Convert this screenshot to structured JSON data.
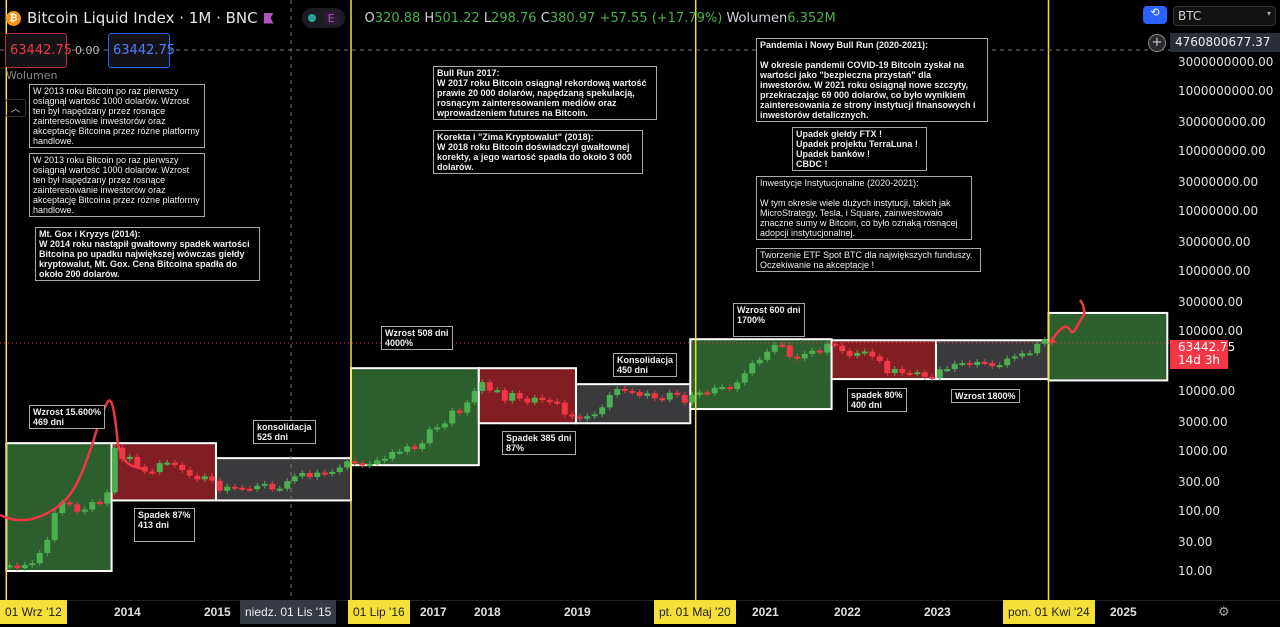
{
  "header": {
    "title": "Bitcoin Liquid Index · 1M · BNC",
    "badge_e": "E",
    "ohlc": {
      "o_label": "O",
      "o": "320.88",
      "h_label": "H",
      "h": "501.22",
      "l_label": "L",
      "l": "298.76",
      "c_label": "C",
      "c": "380.97",
      "change": "+57.55 (+17.79%)",
      "vol_label": "Wolumen",
      "vol": "6.352M"
    },
    "sell_price": "63442.75",
    "spread": "0.00",
    "buy_price": "63442.75",
    "volume_label": "Wolumen"
  },
  "right": {
    "symbol_select": "BTC",
    "crosshair_price": "4760800677.37",
    "last_price": "63442.75",
    "countdown": "14d 3h"
  },
  "colors": {
    "up": "#4caf50",
    "down": "#f23645",
    "green_box": "#2d5e2d",
    "red_box": "#801e24",
    "gray_box": "#3a3a3d",
    "marker": "#f5e03a"
  },
  "annotations": [
    "W 2013 roku Bitcoin po raz pierwszy osiągnął wartość 1000 dolarów. Wzrost ten był napędzany przez rosnące zainteresowanie inwestorów oraz akceptację Bitcoina przez różne platformy handlowe.",
    "W 2013 roku Bitcoin po raz pierwszy osiągnął wartość 1000 dolarów. Wzrost ten był napędzany przez rosnące zainteresowanie inwestorów oraz akceptację Bitcoina przez różne platformy handlowe.",
    "Mt. Gox i Kryzys (2014):\nW 2014 roku nastąpił gwałtowny spadek wartości Bitcoina po upadku największej wówczas giełdy kryptowalut, Mt. Gox. Cena Bitcoina spadła do około 200 dolarów.",
    "Bull Run 2017:\nW 2017 roku Bitcoin osiągnął rekordową wartość prawie 20 000 dolarów, napędzaną spekulacją, rosnącym zainteresowaniem mediów oraz wprowadzeniem futures na Bitcoin.",
    "Korekta i \"Zima Kryptowalut\" (2018):\nW 2018 roku Bitcoin doświadczył gwałtownej korekty, a jego wartość spadła do około 3 000 dolarów.",
    "Pandemia i Nowy Bull Run (2020-2021):\n\nW okresie pandemii COVID-19 Bitcoin zyskał na wartości jako \"bezpieczna przystań\" dla inwestorów. W 2021 roku osiągnął nowe szczyty, przekraczając 69 000 dolarów, co było wynikiem zainteresowania ze strony instytucji finansowych i inwestorów detalicznych.",
    "Upadek giełdy FTX !\nUpadek projektu TerraLuna !\nUpadek banków !\nCBDC !",
    "Inwestycje Instytucjonalne (2020-2021):\n\nW tym okresie wiele dużych instytucji, takich jak MicroStrategy, Tesla, i Square, zainwestowało znaczne sumy w Bitcoin, co było oznaką rosnącej adopcji instytucjonalnej.",
    "Tworzenie ETF Spot BTC dla największych funduszy.\nOczekiwanie na akceptacje !"
  ],
  "cycle_labels": [
    "Wzrost 15.600%\n469 dni",
    "Spadek 87%\n413 dni",
    "konsolidacja\n525 dni",
    "Wzrost 508 dni\n4000%",
    "Spadek 385 dni\n87%",
    "Konsolidacja\n450 dni",
    "Wzrost 600 dni\n1700%",
    "spadek 80%\n400 dni",
    "Wzrost 1800%"
  ],
  "x_axis": {
    "years": [
      "2014",
      "2015",
      "2017",
      "2018",
      "2019",
      "2021",
      "2022",
      "2023",
      "2025"
    ],
    "markers": [
      "01 Wrz '12",
      "niedz. 01 Lis '15",
      "01 Lip '16",
      "pt. 01 Maj '20",
      "pon. 01 Kwi '24"
    ]
  },
  "chart_data": {
    "type": "candlestick",
    "scale": "log",
    "symbol": "BTC",
    "interval": "1M",
    "y_ticks": [
      "3000000000.00",
      "1000000000.00",
      "300000000.00",
      "100000000.00",
      "30000000.00",
      "10000000.00",
      "3000000.00",
      "1000000.00",
      "300000.00",
      "100000.00",
      "10000.00",
      "3000.00",
      "1000.00",
      "300.00",
      "100.00",
      "30.00",
      "10.00"
    ],
    "start": "2012-09",
    "closes": [
      12.4,
      11.2,
      12.6,
      13.5,
      20,
      33,
      93,
      139,
      129,
      97,
      106,
      141,
      133,
      204,
      1130,
      732,
      800,
      550,
      455,
      445,
      627,
      640,
      586,
      480,
      387,
      338,
      378,
      320,
      217,
      254,
      244,
      236,
      230,
      263,
      284,
      230,
      236,
      314,
      378,
      430,
      369,
      437,
      416,
      448,
      531,
      673,
      624,
      575,
      609,
      700,
      742,
      963,
      970,
      1190,
      1080,
      1350,
      2300,
      2480,
      2875,
      4700,
      4340,
      6450,
      10000,
      14000,
      10200,
      10300,
      6900,
      9240,
      7500,
      6400,
      7730,
      7030,
      6630,
      6370,
      4040,
      3740,
      3460,
      3800,
      4100,
      5320,
      8570,
      10800,
      10080,
      9600,
      8300,
      9150,
      7550,
      7200,
      9350,
      8600,
      6420,
      8630,
      9450,
      9140,
      11350,
      11650,
      10780,
      13800,
      19700,
      29000,
      33100,
      45100,
      58900,
      57700,
      37300,
      35000,
      41500,
      47100,
      43800,
      61300,
      57000,
      46300,
      38500,
      43200,
      45500,
      37700,
      31800,
      19900,
      23300,
      20050,
      19400,
      20500,
      17200,
      16550,
      23100,
      23150,
      28500,
      29250,
      27200,
      30500,
      29200,
      25950,
      26950,
      34650,
      37700,
      42300,
      42600,
      61200,
      71300,
      63442.75
    ],
    "phases": [
      {
        "type": "up",
        "from": 2012.67,
        "to": 2013.84,
        "low": 10,
        "high": 1350
      },
      {
        "type": "down",
        "from": 2013.84,
        "to": 2015.0,
        "low": 150,
        "high": 1350
      },
      {
        "type": "flat",
        "from": 2015.0,
        "to": 2016.5,
        "low": 150,
        "high": 760
      },
      {
        "type": "up",
        "from": 2016.5,
        "to": 2017.92,
        "low": 580,
        "high": 24000
      },
      {
        "type": "down",
        "from": 2017.92,
        "to": 2019.0,
        "low": 2900,
        "high": 24000
      },
      {
        "type": "flat",
        "from": 2019.0,
        "to": 2020.27,
        "low": 2900,
        "high": 13000
      },
      {
        "type": "up",
        "from": 2020.27,
        "to": 2021.84,
        "low": 5000,
        "high": 73000
      },
      {
        "type": "down",
        "from": 2021.84,
        "to": 2023.0,
        "low": 15800,
        "high": 70000
      },
      {
        "type": "flat",
        "from": 2023.0,
        "to": 2024.25,
        "low": 15800,
        "high": 70000
      },
      {
        "type": "up",
        "from": 2024.25,
        "to": 2025.57,
        "low": 15000,
        "high": 200000
      }
    ]
  }
}
